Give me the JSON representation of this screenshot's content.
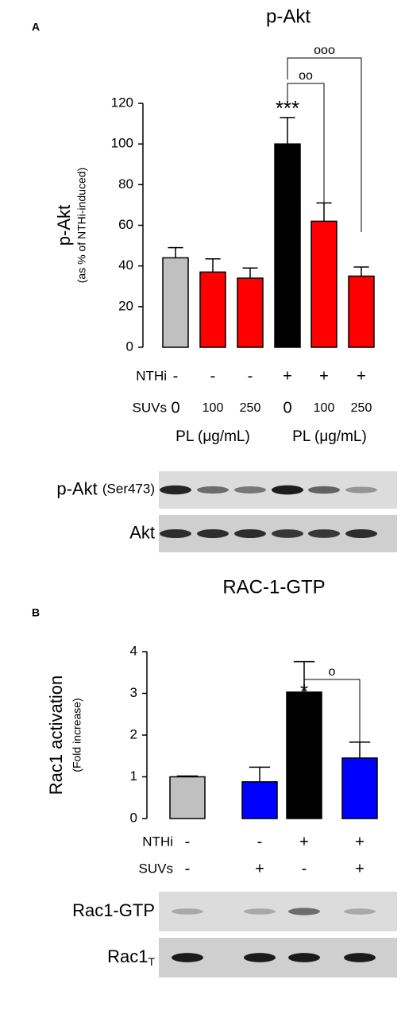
{
  "chart_data": [
    {
      "type": "bar",
      "panel": "A",
      "title": "p-Akt",
      "y_label": "p-Akt",
      "y_sublabel": "(as % of NTHi-induced)",
      "categories": [
        null,
        null,
        null,
        null,
        null,
        null
      ],
      "values": [
        44,
        37,
        34,
        100,
        62,
        35
      ],
      "errors": [
        5,
        6.5,
        5,
        13,
        9,
        4.5
      ],
      "colors": [
        "#c0c0c0",
        "#ff0000",
        "#ff0000",
        "#000000",
        "#ff0000",
        "#ff0000"
      ],
      "ylim": [
        0,
        120
      ],
      "yticks": [
        0,
        20,
        40,
        60,
        80,
        100,
        120
      ],
      "annotations": [
        "***"
      ],
      "brackets": [
        "oo",
        "ooo"
      ],
      "conditions": [
        {
          "label": "NTHi",
          "values": [
            "-",
            "-",
            "-",
            "+",
            "+",
            "+"
          ]
        },
        {
          "label": "SUVs",
          "values": [
            "0",
            "100",
            "250",
            "0",
            "100",
            "250"
          ]
        }
      ],
      "group_labels": [
        "PL (μg/mL)",
        "PL (μg/mL)"
      ],
      "blots": [
        {
          "label": "p-Akt",
          "sublabel": "(Ser473)"
        },
        {
          "label": "Akt"
        }
      ]
    },
    {
      "type": "bar",
      "panel": "B",
      "title": "RAC-1-GTP",
      "y_label": "Rac1 activation",
      "y_sublabel": "(Fold increase)",
      "categories": [
        null,
        null,
        null,
        null
      ],
      "values": [
        1.0,
        0.88,
        3.03,
        1.45
      ],
      "errors": [
        0.02,
        0.35,
        0.73,
        0.38
      ],
      "colors": [
        "#c0c0c0",
        "#0000ff",
        "#000000",
        "#0000ff"
      ],
      "ylim": [
        0,
        4
      ],
      "yticks": [
        0,
        1,
        2,
        3,
        4
      ],
      "annotations": [
        "*"
      ],
      "brackets": [
        "o"
      ],
      "conditions": [
        {
          "label": "NTHi",
          "values": [
            "-",
            "-",
            "+",
            "+"
          ]
        },
        {
          "label": "SUVs",
          "values": [
            "-",
            "+",
            "-",
            "+"
          ]
        }
      ],
      "blots": [
        {
          "label": "Rac1-GTP"
        },
        {
          "label": "Rac1",
          "subscript": "T"
        }
      ]
    }
  ]
}
